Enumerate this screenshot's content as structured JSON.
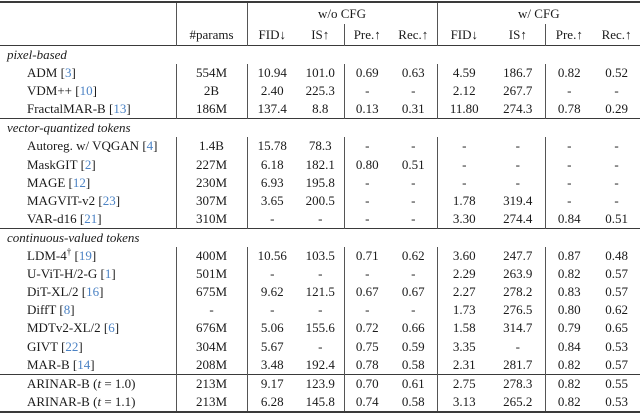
{
  "table": {
    "group_headers": [
      {
        "label": "w/o CFG"
      },
      {
        "label": "w/ CFG"
      }
    ],
    "columns": {
      "params": "#params",
      "metrics": [
        "FID↓",
        "IS↑",
        "Pre.↑",
        "Rec.↑",
        "FID↓",
        "IS↑",
        "Pre.↑",
        "Rec.↑"
      ]
    },
    "sections": [
      {
        "label": "pixel-based",
        "rows": [
          {
            "name": "ADM",
            "cite": "3",
            "params": "554M",
            "metrics": [
              "10.94",
              "101.0",
              "0.69",
              "0.63",
              "4.59",
              "186.7",
              "0.82",
              "0.52"
            ]
          },
          {
            "name": "VDM++",
            "cite": "10",
            "params": "2B",
            "metrics": [
              "2.40",
              "225.3",
              "-",
              "-",
              "2.12",
              "267.7",
              "-",
              "-"
            ]
          },
          {
            "name": "FractalMAR-B",
            "cite": "13",
            "params": "186M",
            "metrics": [
              "137.4",
              "8.8",
              "0.13",
              "0.31",
              "11.80",
              "274.3",
              "0.78",
              "0.29"
            ]
          }
        ]
      },
      {
        "label": "vector-quantized tokens",
        "rows": [
          {
            "name": "Autoreg. w/ VQGAN",
            "cite": "4",
            "params": "1.4B",
            "metrics": [
              "15.78",
              "78.3",
              "-",
              "-",
              "-",
              "-",
              "-",
              "-"
            ]
          },
          {
            "name": "MaskGIT",
            "cite": "2",
            "params": "227M",
            "metrics": [
              "6.18",
              "182.1",
              "0.80",
              "0.51",
              "-",
              "-",
              "-",
              "-"
            ]
          },
          {
            "name": "MAGE",
            "cite": "12",
            "params": "230M",
            "metrics": [
              "6.93",
              "195.8",
              "-",
              "-",
              "-",
              "-",
              "-",
              "-"
            ]
          },
          {
            "name": "MAGVIT-v2",
            "cite": "23",
            "params": "307M",
            "metrics": [
              "3.65",
              "200.5",
              "-",
              "-",
              "1.78",
              "319.4",
              "-",
              "-"
            ]
          },
          {
            "name": "VAR-d16",
            "cite": "21",
            "params": "310M",
            "metrics": [
              "-",
              "-",
              "-",
              "-",
              "3.30",
              "274.4",
              "0.84",
              "0.51"
            ]
          }
        ]
      },
      {
        "label": "continuous-valued tokens",
        "rows": [
          {
            "name": "LDM-4",
            "sup": "†",
            "cite": "19",
            "params": "400M",
            "metrics": [
              "10.56",
              "103.5",
              "0.71",
              "0.62",
              "3.60",
              "247.7",
              "0.87",
              "0.48"
            ]
          },
          {
            "name": "U-ViT-H/2-G",
            "cite": "1",
            "params": "501M",
            "metrics": [
              "-",
              "-",
              "-",
              "-",
              "2.29",
              "263.9",
              "0.82",
              "0.57"
            ]
          },
          {
            "name": "DiT-XL/2",
            "cite": "16",
            "params": "675M",
            "metrics": [
              "9.62",
              "121.5",
              "0.67",
              "0.67",
              "2.27",
              "278.2",
              "0.83",
              "0.57"
            ]
          },
          {
            "name": "DiffT",
            "cite": "8",
            "params": "-",
            "metrics": [
              "-",
              "-",
              "-",
              "-",
              "1.73",
              "276.5",
              "0.80",
              "0.62"
            ]
          },
          {
            "name": "MDTv2-XL/2",
            "cite": "6",
            "params": "676M",
            "metrics": [
              "5.06",
              "155.6",
              "0.72",
              "0.66",
              "1.58",
              "314.7",
              "0.79",
              "0.65"
            ]
          },
          {
            "name": "GIVT",
            "cite": "22",
            "params": "304M",
            "metrics": [
              "5.67",
              "-",
              "0.75",
              "0.59",
              "3.35",
              "-",
              "0.84",
              "0.53"
            ]
          },
          {
            "name": "MAR-B",
            "cite": "14",
            "params": "208M",
            "metrics": [
              "3.48",
              "192.4",
              "0.78",
              "0.58",
              "2.31",
              "281.7",
              "0.82",
              "0.57"
            ]
          }
        ]
      },
      {
        "label": null,
        "rows": [
          {
            "name": "ARINAR-B",
            "variant": "t = 1.0",
            "params": "213M",
            "metrics": [
              "9.17",
              "123.9",
              "0.70",
              "0.61",
              "2.75",
              "278.3",
              "0.82",
              "0.55"
            ]
          },
          {
            "name": "ARINAR-B",
            "variant": "t = 1.1",
            "params": "213M",
            "metrics": [
              "6.28",
              "145.8",
              "0.74",
              "0.58",
              "3.13",
              "265.2",
              "0.82",
              "0.53"
            ]
          }
        ]
      }
    ],
    "colors": {
      "citation": "#4b82c4",
      "rule": "#3a3a3a"
    }
  }
}
